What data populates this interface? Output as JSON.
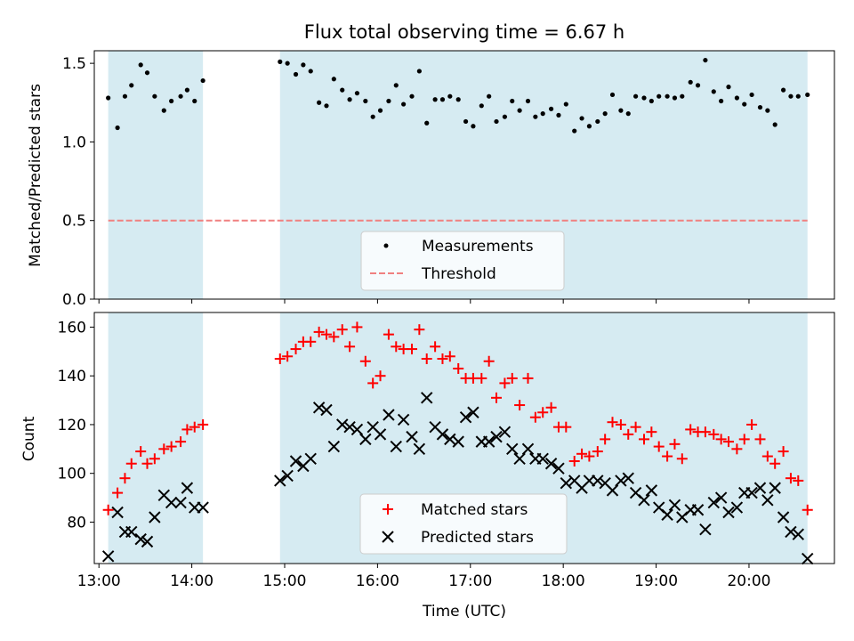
{
  "title": "Flux total observing time = 6.67 h",
  "colors": {
    "shade": "#add8e6",
    "threshold": "#f08080",
    "matched": "#ff0000",
    "predicted": "#000000",
    "measurement": "#000000"
  },
  "chart_data": [
    {
      "type": "scatter",
      "ylabel": "Matched/Predicted stars",
      "xlim": [
        12.95,
        20.92
      ],
      "ylim": [
        0,
        1.58
      ],
      "yticks": [
        0.0,
        0.5,
        1.0,
        1.5
      ],
      "ytick_labels": [
        "0.0",
        "0.5",
        "1.0",
        "1.5"
      ],
      "shaded_spans": [
        [
          13.1,
          14.12
        ],
        [
          14.95,
          20.63
        ]
      ],
      "threshold": 0.5,
      "legend": {
        "location": "lower center",
        "entries": [
          "Measurements",
          "Threshold"
        ]
      },
      "series": [
        {
          "name": "Measurements",
          "marker": "dot",
          "x": [
            13.1,
            13.2,
            13.28,
            13.35,
            13.45,
            13.52,
            13.6,
            13.7,
            13.78,
            13.88,
            13.95,
            14.03,
            14.12,
            14.95,
            15.03,
            15.12,
            15.2,
            15.28,
            15.37,
            15.45,
            15.53,
            15.62,
            15.7,
            15.78,
            15.87,
            15.95,
            16.03,
            16.12,
            16.2,
            16.28,
            16.37,
            16.45,
            16.53,
            16.62,
            16.7,
            16.78,
            16.87,
            16.95,
            17.03,
            17.12,
            17.2,
            17.28,
            17.37,
            17.45,
            17.53,
            17.62,
            17.7,
            17.78,
            17.87,
            17.95,
            18.03,
            18.12,
            18.2,
            18.28,
            18.37,
            18.45,
            18.53,
            18.62,
            18.7,
            18.78,
            18.87,
            18.95,
            19.03,
            19.12,
            19.2,
            19.28,
            19.37,
            19.45,
            19.53,
            19.62,
            19.7,
            19.78,
            19.87,
            19.95,
            20.03,
            20.12,
            20.2,
            20.28,
            20.37,
            20.45,
            20.53,
            20.63
          ],
          "y": [
            1.28,
            1.09,
            1.29,
            1.36,
            1.49,
            1.44,
            1.29,
            1.2,
            1.26,
            1.29,
            1.33,
            1.26,
            1.39,
            1.51,
            1.5,
            1.43,
            1.49,
            1.45,
            1.25,
            1.23,
            1.4,
            1.33,
            1.27,
            1.31,
            1.26,
            1.16,
            1.2,
            1.26,
            1.36,
            1.24,
            1.29,
            1.45,
            1.12,
            1.27,
            1.27,
            1.29,
            1.27,
            1.13,
            1.1,
            1.23,
            1.29,
            1.13,
            1.16,
            1.26,
            1.2,
            1.26,
            1.16,
            1.18,
            1.21,
            1.17,
            1.24,
            1.07,
            1.15,
            1.1,
            1.13,
            1.18,
            1.3,
            1.2,
            1.18,
            1.29,
            1.28,
            1.26,
            1.29,
            1.29,
            1.28,
            1.29,
            1.38,
            1.36,
            1.52,
            1.32,
            1.26,
            1.35,
            1.28,
            1.24,
            1.3,
            1.22,
            1.2,
            1.11,
            1.33,
            1.29,
            1.29,
            1.3
          ]
        }
      ]
    },
    {
      "type": "scatter",
      "xlabel": "Time (UTC)",
      "ylabel": "Count",
      "xlim": [
        12.95,
        20.92
      ],
      "ylim": [
        63,
        166
      ],
      "xticks": [
        13,
        14,
        15,
        16,
        17,
        18,
        19,
        20
      ],
      "xtick_labels": [
        "13:00",
        "14:00",
        "15:00",
        "16:00",
        "17:00",
        "18:00",
        "19:00",
        "20:00"
      ],
      "yticks": [
        80,
        100,
        120,
        140,
        160
      ],
      "ytick_labels": [
        "80",
        "100",
        "120",
        "140",
        "160"
      ],
      "shaded_spans": [
        [
          13.1,
          14.12
        ],
        [
          14.95,
          20.63
        ]
      ],
      "legend": {
        "location": "lower center",
        "entries": [
          "Matched stars",
          "Predicted stars"
        ]
      },
      "series": [
        {
          "name": "Matched stars",
          "marker": "plus",
          "x": [
            13.1,
            13.2,
            13.28,
            13.35,
            13.45,
            13.52,
            13.6,
            13.7,
            13.78,
            13.88,
            13.95,
            14.03,
            14.12,
            14.95,
            15.03,
            15.12,
            15.2,
            15.28,
            15.37,
            15.45,
            15.53,
            15.62,
            15.7,
            15.78,
            15.87,
            15.95,
            16.03,
            16.12,
            16.2,
            16.28,
            16.37,
            16.45,
            16.53,
            16.62,
            16.7,
            16.78,
            16.87,
            16.95,
            17.03,
            17.12,
            17.2,
            17.28,
            17.37,
            17.45,
            17.53,
            17.62,
            17.7,
            17.78,
            17.87,
            17.95,
            18.03,
            18.12,
            18.2,
            18.28,
            18.37,
            18.45,
            18.53,
            18.62,
            18.7,
            18.78,
            18.87,
            18.95,
            19.03,
            19.12,
            19.2,
            19.28,
            19.37,
            19.45,
            19.53,
            19.62,
            19.7,
            19.78,
            19.87,
            19.95,
            20.03,
            20.12,
            20.2,
            20.28,
            20.37,
            20.45,
            20.53,
            20.63
          ],
          "y": [
            85,
            92,
            98,
            104,
            109,
            104,
            106,
            110,
            111,
            113,
            118,
            119,
            120,
            147,
            148,
            151,
            154,
            154,
            158,
            157,
            156,
            159,
            152,
            160,
            146,
            137,
            140,
            157,
            152,
            151,
            151,
            159,
            147,
            152,
            147,
            148,
            143,
            139,
            139,
            139,
            146,
            131,
            137,
            139,
            128,
            139,
            123,
            125,
            127,
            119,
            119,
            105,
            108,
            107,
            109,
            114,
            121,
            120,
            116,
            119,
            114,
            117,
            111,
            107,
            112,
            106,
            118,
            117,
            117,
            116,
            114,
            113,
            110,
            114,
            120,
            114,
            107,
            104,
            109,
            98,
            97,
            85
          ]
        },
        {
          "name": "Predicted stars",
          "marker": "x",
          "x": [
            13.1,
            13.2,
            13.28,
            13.35,
            13.45,
            13.52,
            13.6,
            13.7,
            13.78,
            13.88,
            13.95,
            14.03,
            14.12,
            14.95,
            15.03,
            15.12,
            15.2,
            15.28,
            15.37,
            15.45,
            15.53,
            15.62,
            15.7,
            15.78,
            15.87,
            15.95,
            16.03,
            16.12,
            16.2,
            16.28,
            16.37,
            16.45,
            16.53,
            16.62,
            16.7,
            16.78,
            16.87,
            16.95,
            17.03,
            17.12,
            17.2,
            17.28,
            17.37,
            17.45,
            17.53,
            17.62,
            17.7,
            17.78,
            17.87,
            17.95,
            18.03,
            18.12,
            18.2,
            18.28,
            18.37,
            18.45,
            18.53,
            18.62,
            18.7,
            18.78,
            18.87,
            18.95,
            19.03,
            19.12,
            19.2,
            19.28,
            19.37,
            19.45,
            19.53,
            19.62,
            19.7,
            19.78,
            19.87,
            19.95,
            20.03,
            20.12,
            20.2,
            20.28,
            20.37,
            20.45,
            20.53,
            20.63
          ],
          "y": [
            66,
            84,
            76,
            76,
            73,
            72,
            82,
            91,
            88,
            88,
            94,
            86,
            86,
            97,
            99,
            105,
            103,
            106,
            127,
            126,
            111,
            120,
            119,
            118,
            114,
            119,
            116,
            124,
            111,
            122,
            115,
            110,
            131,
            119,
            116,
            114,
            113,
            123,
            125,
            113,
            113,
            115,
            117,
            110,
            106,
            110,
            106,
            106,
            104,
            102,
            96,
            97,
            94,
            97,
            97,
            96,
            93,
            97,
            98,
            92,
            89,
            93,
            86,
            83,
            87,
            82,
            85,
            85,
            77,
            88,
            90,
            84,
            86,
            92,
            92,
            94,
            89,
            94,
            82,
            76,
            75,
            65
          ]
        }
      ]
    }
  ]
}
